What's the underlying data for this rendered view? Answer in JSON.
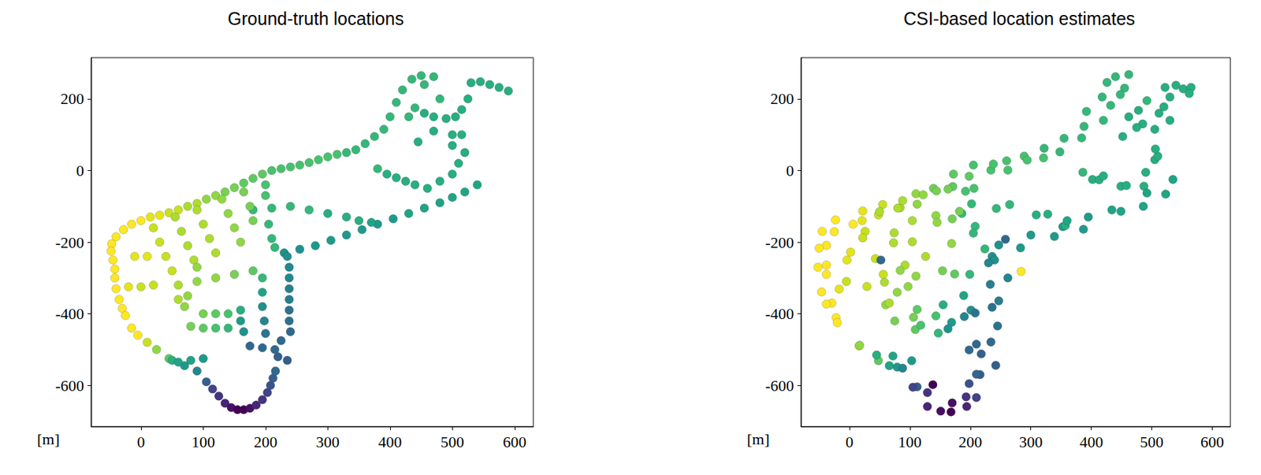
{
  "chart_data": [
    {
      "type": "scatter",
      "title": "Ground-truth locations",
      "annotation": "[m]",
      "marker": "circle",
      "grid": false,
      "xlim": [
        -80,
        630
      ],
      "ylim": [
        -715,
        315
      ],
      "xticks": [
        0,
        100,
        200,
        300,
        400,
        500,
        600
      ],
      "yticks": [
        -600,
        -400,
        -200,
        0,
        200
      ],
      "x": [
        0,
        -15,
        -28,
        -40,
        -47,
        -48,
        -45,
        -42,
        -42,
        -40,
        -35,
        -30,
        -25,
        -15,
        -5,
        10,
        25,
        45,
        50,
        70,
        90,
        105,
        115,
        125,
        135,
        145,
        155,
        165,
        175,
        185,
        195,
        203,
        208,
        212,
        216,
        60,
        80,
        100,
        15,
        30,
        45,
        60,
        75,
        90,
        105,
        120,
        135,
        150,
        165,
        180,
        195,
        210,
        225,
        240,
        255,
        270,
        285,
        300,
        315,
        330,
        345,
        360,
        375,
        390,
        400,
        410,
        420,
        435,
        450,
        470,
        455,
        440,
        455,
        470,
        490,
        505,
        515,
        525,
        530,
        545,
        560,
        575,
        590,
        480,
        430,
        500,
        515,
        470,
        445,
        380,
        395,
        410,
        425,
        440,
        460,
        480,
        500,
        510,
        520,
        500,
        230,
        255,
        280,
        305,
        330,
        355,
        380,
        405,
        430,
        455,
        480,
        500,
        520,
        540,
        180,
        210,
        240,
        270,
        300,
        330,
        350,
        370,
        200,
        200,
        205,
        210,
        215,
        20,
        30,
        40,
        55,
        65,
        75,
        85,
        90,
        100,
        110,
        120,
        130,
        140,
        150,
        160,
        165,
        175,
        180,
        -10,
        10,
        -20,
        0,
        20,
        60,
        90,
        120,
        150,
        180,
        50,
        235,
        238,
        238,
        238,
        238,
        238,
        238,
        240,
        195,
        195,
        195,
        198,
        200,
        160,
        160,
        165,
        100,
        120,
        140,
        80,
        100,
        120,
        140,
        70,
        75,
        90,
        60,
        175,
        195,
        215,
        225,
        220,
        235
      ],
      "values": [
        -140,
        -150,
        -165,
        -185,
        -205,
        -225,
        -250,
        -275,
        -300,
        -330,
        -360,
        -385,
        -405,
        -440,
        -460,
        -480,
        -500,
        -525,
        -530,
        -545,
        -560,
        -590,
        -610,
        -630,
        -650,
        -662,
        -668,
        -668,
        -664,
        -655,
        -640,
        -620,
        -600,
        -580,
        -560,
        -535,
        -530,
        -525,
        -130,
        -125,
        -118,
        -110,
        -100,
        -92,
        -80,
        -70,
        -60,
        -48,
        -35,
        -22,
        -10,
        0,
        5,
        10,
        15,
        22,
        30,
        38,
        45,
        50,
        58,
        75,
        95,
        115,
        150,
        190,
        225,
        255,
        265,
        262,
        240,
        175,
        160,
        150,
        145,
        150,
        170,
        200,
        245,
        248,
        240,
        232,
        222,
        200,
        150,
        100,
        100,
        110,
        80,
        5,
        -10,
        -20,
        -30,
        -40,
        -50,
        -30,
        -10,
        20,
        50,
        70,
        -230,
        -220,
        -210,
        -195,
        -180,
        -165,
        -150,
        -135,
        -120,
        -105,
        -90,
        -75,
        -60,
        -40,
        -110,
        -105,
        -100,
        -110,
        -120,
        -130,
        -140,
        -145,
        -40,
        -70,
        -150,
        -190,
        -215,
        -160,
        -200,
        -240,
        -130,
        -170,
        -210,
        -250,
        -110,
        -150,
        -190,
        -230,
        -80,
        -120,
        -160,
        -200,
        -60,
        -100,
        -140,
        -240,
        -240,
        -325,
        -325,
        -320,
        -320,
        -310,
        -300,
        -290,
        -280,
        -280,
        -240,
        -270,
        -300,
        -330,
        -360,
        -390,
        -420,
        -450,
        -300,
        -340,
        -380,
        -420,
        -455,
        -390,
        -420,
        -450,
        -400,
        -400,
        -400,
        -435,
        -440,
        -440,
        -440,
        -380,
        -350,
        -270,
        -360,
        -490,
        -495,
        -500,
        -475,
        -520,
        -530
      ],
      "colors": [
        "#fde725",
        "#fde725",
        "#fde725",
        "#fde725",
        "#fde725",
        "#fde725",
        "#fde725",
        "#fde725",
        "#fde725",
        "#fde725",
        "#fde725",
        "#fde725",
        "#fde725",
        "#fde725",
        "#fde725",
        "#c8e020",
        "#90d743",
        "#5ec962",
        "#28ae80",
        "#1f9a8a",
        "#24868e",
        "#355f8d",
        "#414487",
        "#463480",
        "#482576",
        "#471063",
        "#440154",
        "#440154",
        "#471063",
        "#482576",
        "#463480",
        "#414487",
        "#3b528b",
        "#355f8d",
        "#31688e",
        "#20a486",
        "#20a486",
        "#1f9a8a",
        "#e5e419",
        "#e5e419",
        "#c8e020",
        "#c8e020",
        "#addc30",
        "#addc30",
        "#90d743",
        "#90d743",
        "#75d054",
        "#75d054",
        "#5ec962",
        "#5ec962",
        "#5ec962",
        "#48c16e",
        "#48c16e",
        "#48c16e",
        "#48c16e",
        "#48c16e",
        "#48c16e",
        "#48c16e",
        "#48c16e",
        "#35b779",
        "#35b779",
        "#35b779",
        "#35b779",
        "#35b779",
        "#35b779",
        "#35b779",
        "#35b779",
        "#35b779",
        "#35b779",
        "#35b779",
        "#35b779",
        "#35b779",
        "#28ae80",
        "#28ae80",
        "#28ae80",
        "#28ae80",
        "#28ae80",
        "#28ae80",
        "#28ae80",
        "#28ae80",
        "#28ae80",
        "#28ae80",
        "#28ae80",
        "#35b779",
        "#35b779",
        "#28ae80",
        "#28ae80",
        "#28ae80",
        "#28ae80",
        "#35b779",
        "#28ae80",
        "#28ae80",
        "#28ae80",
        "#28ae80",
        "#28ae80",
        "#28ae80",
        "#28ae80",
        "#28ae80",
        "#28ae80",
        "#28ae80",
        "#21918c",
        "#21918c",
        "#1f9a8a",
        "#1f9a8a",
        "#1f9a8a",
        "#1f9a8a",
        "#1f9a8a",
        "#1f9a8a",
        "#20a486",
        "#20a486",
        "#20a486",
        "#20a486",
        "#20a486",
        "#20a486",
        "#35b779",
        "#35b779",
        "#35b779",
        "#35b779",
        "#28ae80",
        "#28ae80",
        "#28ae80",
        "#20a486",
        "#48c16e",
        "#48c16e",
        "#35b779",
        "#35b779",
        "#35b779",
        "#c8e020",
        "#c8e020",
        "#c8e020",
        "#addc30",
        "#addc30",
        "#addc30",
        "#addc30",
        "#addc30",
        "#addc30",
        "#addc30",
        "#addc30",
        "#90d743",
        "#90d743",
        "#90d743",
        "#90d743",
        "#75d054",
        "#75d054",
        "#75d054",
        "#e5e419",
        "#e5e419",
        "#e5e419",
        "#c8e020",
        "#c8e020",
        "#addc30",
        "#90d743",
        "#90d743",
        "#75d054",
        "#5ec962",
        "#c8e020",
        "#21918c",
        "#24868e",
        "#24868e",
        "#277f8e",
        "#277f8e",
        "#2c728e",
        "#2c728e",
        "#31688e",
        "#35b779",
        "#20a486",
        "#21918c",
        "#24868e",
        "#2c728e",
        "#28ae80",
        "#1f9a8a",
        "#21918c",
        "#75d054",
        "#5ec962",
        "#48c16e",
        "#75d054",
        "#5ec962",
        "#48c16e",
        "#35b779",
        "#90d743",
        "#90d743",
        "#90d743",
        "#addc30",
        "#31688e",
        "#31688e",
        "#31688e",
        "#31688e",
        "#355f8d",
        "#355f8d"
      ]
    },
    {
      "type": "scatter",
      "title": "CSI-based location estimates",
      "annotation": "[m]",
      "marker": "circle",
      "grid": false,
      "xlim": [
        -80,
        630
      ],
      "ylim": [
        -715,
        315
      ],
      "xticks": [
        0,
        100,
        200,
        300,
        400,
        500,
        600
      ],
      "yticks": [
        -600,
        -400,
        -200,
        0,
        200
      ],
      "x": [
        6,
        -23,
        -25,
        -45,
        -38,
        -50,
        -38,
        -52,
        -38,
        -46,
        -29,
        -38,
        -22,
        -20,
        284,
        16,
        17,
        48,
        45,
        79,
        88,
        112,
        105,
        129,
        129,
        151,
        138,
        168,
        170,
        194,
        193,
        210,
        198,
        216,
        210,
        66,
        72,
        103,
        21,
        22,
        48,
        55,
        84,
        88,
        112,
        110,
        139,
        144,
        171,
        172,
        198,
        205,
        234,
        238,
        262,
        260,
        289,
        294,
        321,
        322,
        348,
        355,
        384,
        388,
        392,
        418,
        426,
        440,
        462,
        455,
        448,
        432,
        462,
        478,
        485,
        512,
        520,
        530,
        522,
        540,
        552,
        565,
        562,
        492,
        420,
        505,
        530,
        475,
        452,
        386,
        402,
        413,
        420,
        449,
        458,
        487,
        490,
        505,
        510,
        506,
        236,
        247,
        283,
        300,
        339,
        353,
        387,
        395,
        434,
        449,
        486,
        492,
        523,
        535,
        186,
        202,
        243,
        265,
        309,
        328,
        357,
        360,
        206,
        192,
        208,
        205,
        224,
        26,
        22,
        43,
        50,
        74,
        73,
        92,
        80,
        104,
        104,
        126,
        122,
        143,
        145,
        169,
        163,
        182,
        170,
        -4,
        2,
        -17,
        -5,
        29,
        58,
        97,
        110,
        154,
        174,
        56,
        240,
        230,
        262,
        233,
        247,
        236,
        245,
        258,
        199,
        189,
        201,
        190,
        208,
        155,
        169,
        163,
        106,
        112,
        143,
        75,
        109,
        118,
        147,
        60,
        79,
        84,
        66,
        52,
        198,
        210,
        234,
        218,
        242
      ],
      "values": [
        -150,
        -138,
        -171,
        -170,
        -209,
        -217,
        -264,
        -270,
        -290,
        -339,
        -370,
        -373,
        -411,
        -425,
        -282,
        -490,
        -488,
        -531,
        -515,
        -549,
        -552,
        -604,
        -605,
        -620,
        -659,
        -672,
        -598,
        -674,
        -649,
        -659,
        -632,
        -634,
        -595,
        -570,
        -569,
        -545,
        -518,
        -531,
        -140,
        -113,
        -124,
        -95,
        -104,
        -84,
        -94,
        -65,
        -50,
        -57,
        -45,
        -10,
        -16,
        15,
        1,
        18,
        1,
        27,
        40,
        29,
        35,
        62,
        52,
        90,
        91,
        123,
        165,
        205,
        246,
        262,
        268,
        230,
        212,
        182,
        150,
        168,
        130,
        160,
        178,
        205,
        232,
        238,
        228,
        232,
        215,
        195,
        140,
        115,
        140,
        120,
        95,
        -5,
        -25,
        -26,
        -15,
        -44,
        -42,
        -44,
        -5,
        30,
        40,
        60,
        -240,
        -208,
        -216,
        -180,
        -184,
        -157,
        -164,
        -130,
        -110,
        -114,
        -100,
        -63,
        -66,
        -25,
        -120,
        -93,
        -106,
        -95,
        -124,
        -122,
        -154,
        -140,
        -50,
        -58,
        -156,
        -175,
        -219,
        -170,
        -188,
        -246,
        -115,
        -174,
        -202,
        -264,
        -105,
        -140,
        -199,
        -240,
        -68,
        -126,
        -145,
        -204,
        -52,
        -114,
        -135,
        -250,
        -228,
        -331,
        -310,
        -324,
        -312,
        -324,
        -295,
        -280,
        -289,
        -290,
        -250,
        -258,
        -300,
        -318,
        -364,
        -382,
        -434,
        -192,
        -290,
        -349,
        -390,
        -408,
        -398,
        -375,
        -424,
        -442,
        -410,
        -388,
        -406,
        -420,
        -444,
        -432,
        -454,
        -375,
        -340,
        -279,
        -370,
        -250,
        -501,
        -485,
        -479,
        -512,
        -544
      ],
      "colors": [
        "#fde725",
        "#fde725",
        "#fde725",
        "#fde725",
        "#fde725",
        "#fde725",
        "#fde725",
        "#fde725",
        "#fde725",
        "#fde725",
        "#fde725",
        "#fde725",
        "#fde725",
        "#fde725",
        "#fde725",
        "#c8e020",
        "#90d743",
        "#5ec962",
        "#28ae80",
        "#1f9a8a",
        "#24868e",
        "#355f8d",
        "#414487",
        "#463480",
        "#482576",
        "#471063",
        "#440154",
        "#440154",
        "#471063",
        "#482576",
        "#463480",
        "#414487",
        "#3b528b",
        "#355f8d",
        "#31688e",
        "#20a486",
        "#20a486",
        "#1f9a8a",
        "#e5e419",
        "#e5e419",
        "#c8e020",
        "#c8e020",
        "#addc30",
        "#addc30",
        "#90d743",
        "#90d743",
        "#75d054",
        "#75d054",
        "#5ec962",
        "#5ec962",
        "#5ec962",
        "#48c16e",
        "#48c16e",
        "#48c16e",
        "#48c16e",
        "#48c16e",
        "#48c16e",
        "#48c16e",
        "#48c16e",
        "#35b779",
        "#35b779",
        "#35b779",
        "#35b779",
        "#35b779",
        "#35b779",
        "#35b779",
        "#35b779",
        "#35b779",
        "#35b779",
        "#35b779",
        "#35b779",
        "#35b779",
        "#28ae80",
        "#28ae80",
        "#28ae80",
        "#28ae80",
        "#28ae80",
        "#28ae80",
        "#28ae80",
        "#28ae80",
        "#28ae80",
        "#28ae80",
        "#28ae80",
        "#35b779",
        "#35b779",
        "#28ae80",
        "#28ae80",
        "#28ae80",
        "#28ae80",
        "#35b779",
        "#28ae80",
        "#28ae80",
        "#28ae80",
        "#28ae80",
        "#28ae80",
        "#28ae80",
        "#28ae80",
        "#28ae80",
        "#28ae80",
        "#28ae80",
        "#21918c",
        "#21918c",
        "#1f9a8a",
        "#1f9a8a",
        "#1f9a8a",
        "#1f9a8a",
        "#1f9a8a",
        "#1f9a8a",
        "#20a486",
        "#20a486",
        "#20a486",
        "#20a486",
        "#20a486",
        "#20a486",
        "#35b779",
        "#35b779",
        "#35b779",
        "#35b779",
        "#28ae80",
        "#28ae80",
        "#28ae80",
        "#20a486",
        "#48c16e",
        "#48c16e",
        "#35b779",
        "#35b779",
        "#35b779",
        "#c8e020",
        "#c8e020",
        "#c8e020",
        "#addc30",
        "#addc30",
        "#addc30",
        "#addc30",
        "#addc30",
        "#addc30",
        "#addc30",
        "#addc30",
        "#90d743",
        "#90d743",
        "#90d743",
        "#90d743",
        "#75d054",
        "#75d054",
        "#75d054",
        "#e5e419",
        "#e5e419",
        "#e5e419",
        "#c8e020",
        "#c8e020",
        "#addc30",
        "#90d743",
        "#90d743",
        "#75d054",
        "#5ec962",
        "#c8e020",
        "#21918c",
        "#24868e",
        "#24868e",
        "#277f8e",
        "#277f8e",
        "#2c728e",
        "#2c728e",
        "#31688e",
        "#35b779",
        "#20a486",
        "#21918c",
        "#24868e",
        "#2c728e",
        "#28ae80",
        "#1f9a8a",
        "#21918c",
        "#75d054",
        "#5ec962",
        "#48c16e",
        "#75d054",
        "#5ec962",
        "#48c16e",
        "#35b779",
        "#90d743",
        "#90d743",
        "#90d743",
        "#addc30",
        "#31688e",
        "#31688e",
        "#31688e",
        "#31688e",
        "#355f8d",
        "#355f8d"
      ]
    }
  ]
}
